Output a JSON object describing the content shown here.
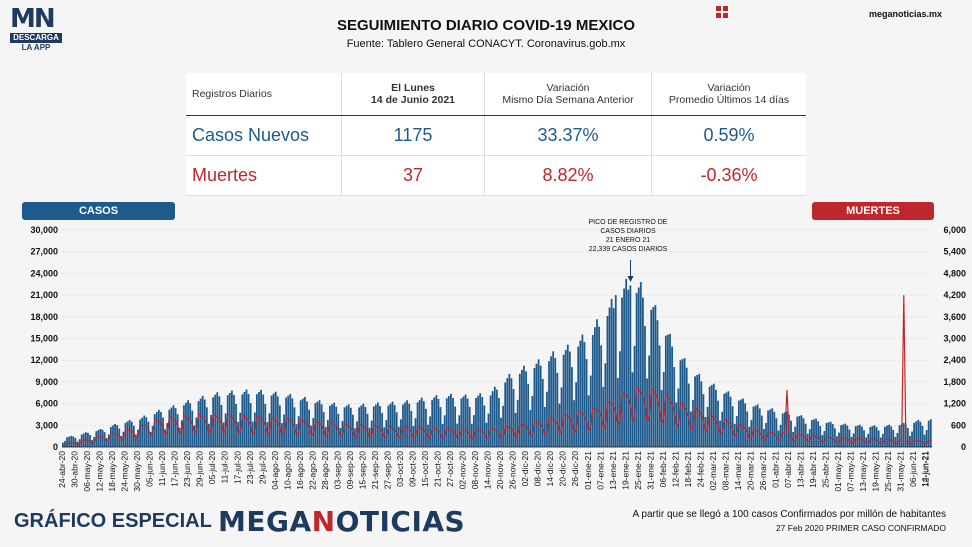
{
  "logo": {
    "mark_mn": "MN",
    "descarga": "DESCARGA",
    "app": "LA APP"
  },
  "header": {
    "title": "SEGUIMIENTO DIARIO COVID-19 MEXICO",
    "subtitle": "Fuente: Tablero General CONACYT. Coronavirus.gob.mx",
    "site": "meganoticias.mx"
  },
  "stats_table": {
    "header_label": "Registros Diarios",
    "col1_line1": "El Lunes",
    "col1_line2": "14 de Junio 2021",
    "col2_line1": "Variación",
    "col2_line2": "Mismo Día Semana Anterior",
    "col3_line1": "Variación",
    "col3_line2": "Promedio Últimos 14 días",
    "rows": [
      {
        "label": "Casos Nuevos",
        "value": "1175",
        "var_week": "33.37%",
        "var_14": "0.59%"
      },
      {
        "label": "Muertes",
        "value": "37",
        "var_week": "8.82%",
        "var_14": "-0.36%"
      }
    ]
  },
  "legend": {
    "cases": "CASOS",
    "deaths": "MUERTES"
  },
  "annotation": {
    "line1": "PICO DE REGISTRO DE",
    "line2": "CASOS DIARIOS",
    "line3": "21 ENERO 21",
    "line4": "22,339 CASOS DIARIOS"
  },
  "footer": {
    "left": "GRÁFICO ESPECIAL",
    "brand_a": "MEGA",
    "brand_b": "N",
    "brand_c": "OTICIAS",
    "note1": "A partir que se llegó a 100 casos Confirmados por millón de habitantes",
    "note2": "27 Feb 2020 PRIMER CASO CONFIRMADO"
  },
  "colors": {
    "cases": "#1e5a8c",
    "deaths": "#c0272d",
    "brand": "#1e3a5f"
  },
  "chart_data": {
    "type": "bar",
    "x_tick_labels": [
      "24-abr-20",
      "30-abr-20",
      "06-may-20",
      "12-may-20",
      "18-may-20",
      "24-may-20",
      "30-may-20",
      "05-jun-20",
      "11-jun-20",
      "17-jun-20",
      "23-jun-20",
      "29-jun-20",
      "05-jul-20",
      "11-jul-20",
      "17-jul-20",
      "23-jul-20",
      "29-jul-20",
      "04-ago-20",
      "10-ago-20",
      "16-ago-20",
      "22-ago-20",
      "28-ago-20",
      "03-sep-20",
      "09-sep-20",
      "15-sep-20",
      "21-sep-20",
      "27-sep-20",
      "03-oct-20",
      "09-oct-20",
      "15-oct-20",
      "21-oct-20",
      "27-oct-20",
      "02-nov-20",
      "08-nov-20",
      "14-nov-20",
      "20-nov-20",
      "26-nov-20",
      "02-dic-20",
      "08-dic-20",
      "14-dic-20",
      "20-dic-20",
      "26-dic-20",
      "01-ene-21",
      "07-ene-21",
      "13-ene-21",
      "19-ene-21",
      "25-ene-21",
      "31-ene-21",
      "06-feb-21",
      "12-feb-21",
      "18-feb-21",
      "24-feb-21",
      "02-mar-21",
      "08-mar-21",
      "14-mar-21",
      "20-mar-21",
      "26-mar-21",
      "01-abr-21",
      "07-abr-21",
      "13-abr-21",
      "19-abr-21",
      "25-abr-21",
      "01-may-21",
      "07-may-21",
      "13-may-21",
      "19-may-21",
      "25-may-21",
      "31-may-21",
      "06-jun-21",
      "12-jun-21"
    ],
    "x_label_step_days": 6,
    "start_date": "24-abr-20",
    "end_date": "14-jun-21",
    "y_left": {
      "label": "CASOS",
      "min": 0,
      "max": 30000,
      "ticks": [
        "0",
        "3,000",
        "6,000",
        "9,000",
        "12,000",
        "15,000",
        "18,000",
        "21,000",
        "24,000",
        "27,000",
        "30,000"
      ]
    },
    "y_right": {
      "label": "MUERTES",
      "min": 0,
      "max": 6000,
      "ticks": [
        "0",
        "600",
        "1,200",
        "1,800",
        "2,400",
        "3,000",
        "3,600",
        "4,200",
        "4,800",
        "5,400",
        "6,000"
      ]
    },
    "cases_weekly_avg": [
      1100,
      1300,
      1700,
      2000,
      2500,
      2900,
      3200,
      3800,
      4300,
      4700,
      5200,
      5600,
      6000,
      6200,
      6300,
      6400,
      6300,
      6100,
      5900,
      5600,
      5300,
      5000,
      4800,
      4700,
      4800,
      4900,
      5000,
      5100,
      5300,
      5600,
      5800,
      5900,
      5800,
      5900,
      6200,
      7600,
      8600,
      9200,
      9800,
      10600,
      11200,
      12100,
      13200,
      15200,
      17100,
      19000,
      18200,
      16000,
      13200,
      10600,
      8800,
      7600,
      6800,
      6100,
      5400,
      4800,
      4400,
      4100,
      3800,
      3400,
      3100,
      2800,
      2600,
      2500,
      2400,
      2400,
      2500,
      2700,
      3000,
      3200
    ],
    "cases_peak": {
      "date": "21-ene-21",
      "value": 22339
    },
    "deaths_weekly_avg": [
      60,
      110,
      170,
      240,
      300,
      360,
      440,
      560,
      620,
      650,
      670,
      700,
      690,
      690,
      680,
      650,
      640,
      620,
      610,
      590,
      560,
      530,
      500,
      480,
      470,
      460,
      440,
      440,
      430,
      420,
      410,
      400,
      390,
      380,
      400,
      430,
      480,
      520,
      570,
      640,
      700,
      760,
      820,
      920,
      1060,
      1240,
      1280,
      1230,
      1120,
      960,
      860,
      760,
      650,
      560,
      470,
      380,
      330,
      320,
      290,
      260,
      230,
      210,
      200,
      190,
      180,
      170,
      160,
      150,
      140,
      140
    ],
    "deaths_spikes": [
      {
        "date": "06-abr-21",
        "value": 1580
      },
      {
        "date": "01-jun-21",
        "value": 4200
      }
    ]
  }
}
